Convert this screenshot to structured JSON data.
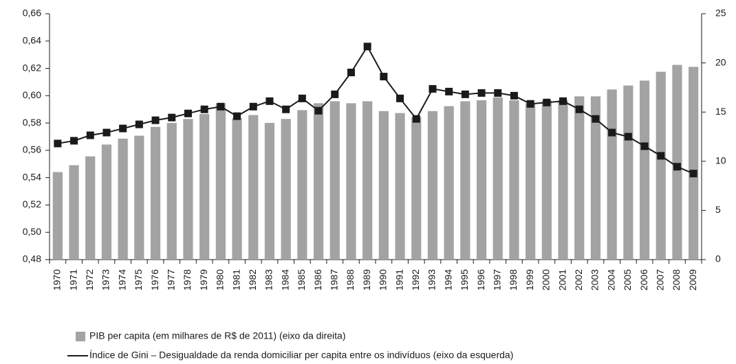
{
  "chart_data": {
    "type": "bar-line",
    "categories": [
      "1970",
      "1971",
      "1972",
      "1973",
      "1974",
      "1975",
      "1976",
      "1977",
      "1978",
      "1979",
      "1980",
      "1981",
      "1982",
      "1983",
      "1984",
      "1985",
      "1986",
      "1987",
      "1988",
      "1989",
      "1990",
      "1991",
      "1992",
      "1993",
      "1994",
      "1995",
      "1996",
      "1997",
      "1998",
      "1999",
      "2000",
      "2001",
      "2002",
      "2003",
      "2004",
      "2005",
      "2006",
      "2007",
      "2008",
      "2009"
    ],
    "series": [
      {
        "name": "PIB per capita (em milhares de R$ de 2011) (eixo da direita)",
        "type": "bar",
        "axis": "y2",
        "color": "#a3a3a3",
        "values": [
          8.9,
          9.6,
          10.5,
          11.7,
          12.3,
          12.6,
          13.5,
          13.9,
          14.3,
          14.8,
          15.9,
          14.4,
          14.7,
          13.9,
          14.3,
          15.2,
          15.9,
          16.1,
          15.9,
          16.1,
          15.1,
          14.9,
          14.5,
          15.1,
          15.6,
          16.1,
          16.2,
          16.5,
          16.2,
          15.9,
          16.2,
          16.2,
          16.6,
          16.6,
          17.3,
          17.7,
          18.2,
          19.1,
          19.8,
          19.6
        ]
      },
      {
        "name": "Índice de Gini – Desigualdade da renda domiciliar per capita entre os indivíduos (eixo da esquerda)",
        "type": "line",
        "color": "#1a1a1a",
        "values": [
          0.565,
          0.567,
          0.571,
          0.573,
          0.576,
          0.579,
          0.582,
          0.584,
          0.587,
          0.59,
          0.592,
          0.585,
          0.592,
          0.596,
          0.59,
          0.598,
          0.589,
          0.601,
          0.617,
          0.636,
          0.614,
          0.598,
          0.583,
          0.605,
          0.603,
          0.601,
          0.602,
          0.602,
          0.6,
          0.594,
          0.595,
          0.596,
          0.59,
          0.583,
          0.573,
          0.57,
          0.563,
          0.556,
          0.548,
          0.543
        ]
      }
    ],
    "ylim": [
      0.48,
      0.66
    ],
    "yticks": [
      {
        "value": 0.48,
        "label": "0,48"
      },
      {
        "value": 0.5,
        "label": "0,50"
      },
      {
        "value": 0.52,
        "label": "0,52"
      },
      {
        "value": 0.54,
        "label": "0,54"
      },
      {
        "value": 0.56,
        "label": "0,56"
      },
      {
        "value": 0.58,
        "label": "0,58"
      },
      {
        "value": 0.6,
        "label": "0,60"
      },
      {
        "value": 0.62,
        "label": "0,62"
      },
      {
        "value": 0.64,
        "label": "0,64"
      },
      {
        "value": 0.66,
        "label": "0,66"
      }
    ],
    "y2lim": [
      0,
      25
    ],
    "y2ticks": [
      0,
      5,
      10,
      15,
      20,
      25
    ],
    "grid": false
  }
}
